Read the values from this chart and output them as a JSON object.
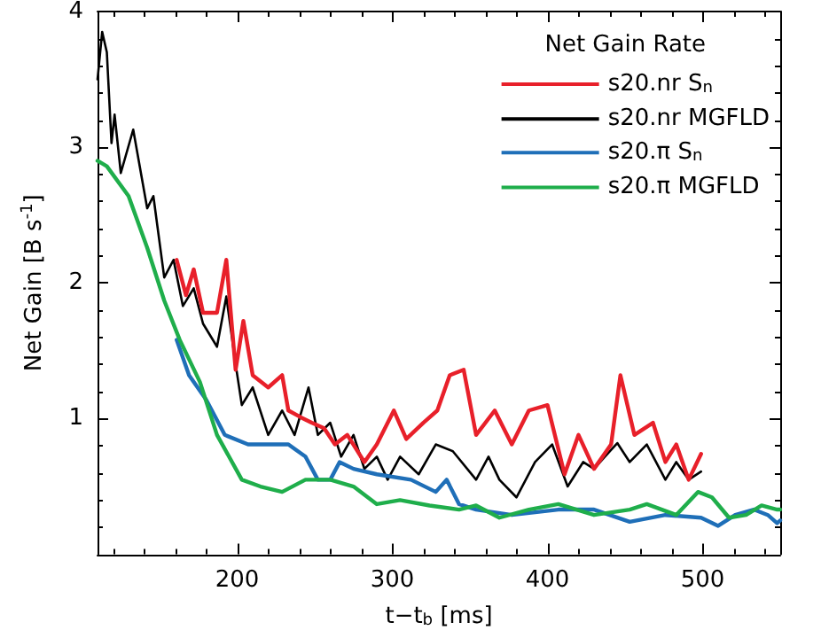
{
  "chart_data": {
    "type": "line",
    "xlabel": "t−t$_{b}$ [ms]",
    "ylabel": "Net Gain [B s$^{-1}$]",
    "legend_title": "Net Gain Rate",
    "legend": "top right",
    "grid": false,
    "marker": "none",
    "line_style": "solid",
    "xlim": [
      110,
      550
    ],
    "xticks": [
      200,
      300,
      400,
      500
    ],
    "ylim": [
      0,
      4
    ],
    "yticks": [
      1,
      2,
      3,
      4
    ],
    "series": [
      {
        "name": "s20.nr S$_{n}$",
        "color": "#e8202a",
        "x": [
          161,
          167,
          172,
          178,
          187,
          193,
          199,
          204,
          210,
          220,
          229,
          233,
          241,
          248,
          256,
          263,
          271,
          282,
          290,
          301,
          309,
          320,
          329,
          337,
          346,
          354,
          366,
          377,
          388,
          400,
          411,
          420,
          430,
          441,
          447,
          456,
          468,
          476,
          483,
          491,
          499
        ],
        "values": [
          2.17,
          1.91,
          2.1,
          1.78,
          1.78,
          2.17,
          1.36,
          1.72,
          1.32,
          1.23,
          1.32,
          1.06,
          1.01,
          0.97,
          0.93,
          0.81,
          0.88,
          0.68,
          0.81,
          1.06,
          0.85,
          0.97,
          1.06,
          1.32,
          1.36,
          0.88,
          1.06,
          0.81,
          1.06,
          1.1,
          0.59,
          0.88,
          0.63,
          0.81,
          1.32,
          0.88,
          0.97,
          0.68,
          0.81,
          0.55,
          0.74
        ]
      },
      {
        "name": "s20.nr MGFLD",
        "color": "#000000",
        "x": [
          110,
          113,
          116,
          119,
          121,
          125,
          133,
          142,
          146,
          153,
          159,
          165,
          172,
          178,
          187,
          193,
          199,
          203,
          210,
          220,
          229,
          237,
          246,
          252,
          260,
          267,
          275,
          282,
          290,
          297,
          305,
          317,
          328,
          339,
          354,
          362,
          369,
          380,
          392,
          403,
          413,
          423,
          430,
          437,
          445,
          453,
          464,
          476,
          483,
          491,
          499
        ],
        "values": [
          3.5,
          3.85,
          3.7,
          3.03,
          3.24,
          2.81,
          3.13,
          2.55,
          2.64,
          2.04,
          2.17,
          1.83,
          1.96,
          1.7,
          1.53,
          1.9,
          1.4,
          1.1,
          1.23,
          0.88,
          1.06,
          0.88,
          1.23,
          0.88,
          0.97,
          0.72,
          0.88,
          0.63,
          0.72,
          0.55,
          0.72,
          0.59,
          0.81,
          0.76,
          0.55,
          0.72,
          0.55,
          0.42,
          0.68,
          0.81,
          0.5,
          0.68,
          0.63,
          0.72,
          0.82,
          0.68,
          0.81,
          0.55,
          0.68,
          0.55,
          0.61
        ]
      },
      {
        "name": "s20.π S$_{n}$",
        "color": "#1f6fb8",
        "x": [
          161,
          169,
          180,
          192,
          207,
          221,
          233,
          244,
          252,
          260,
          266,
          275,
          290,
          312,
          328,
          335,
          343,
          354,
          377,
          407,
          430,
          453,
          476,
          499,
          510,
          521,
          533,
          542,
          548,
          550
        ],
        "values": [
          1.58,
          1.32,
          1.14,
          0.88,
          0.81,
          0.81,
          0.81,
          0.72,
          0.55,
          0.55,
          0.68,
          0.63,
          0.59,
          0.55,
          0.46,
          0.55,
          0.37,
          0.33,
          0.29,
          0.33,
          0.33,
          0.24,
          0.29,
          0.27,
          0.21,
          0.29,
          0.33,
          0.29,
          0.23,
          0.25
        ]
      },
      {
        "name": "s20.π MGFLD",
        "color": "#1fae4b",
        "x": [
          110,
          116,
          130,
          142,
          153,
          163,
          176,
          187,
          203,
          215,
          229,
          244,
          260,
          275,
          290,
          305,
          324,
          343,
          354,
          369,
          388,
          407,
          430,
          453,
          464,
          483,
          497,
          506,
          517,
          528,
          538,
          548,
          550
        ],
        "values": [
          2.9,
          2.86,
          2.64,
          2.26,
          1.87,
          1.58,
          1.27,
          0.88,
          0.55,
          0.5,
          0.46,
          0.55,
          0.55,
          0.5,
          0.37,
          0.4,
          0.36,
          0.33,
          0.36,
          0.27,
          0.33,
          0.37,
          0.29,
          0.33,
          0.37,
          0.29,
          0.46,
          0.42,
          0.27,
          0.29,
          0.36,
          0.33,
          0.33
        ]
      }
    ]
  }
}
